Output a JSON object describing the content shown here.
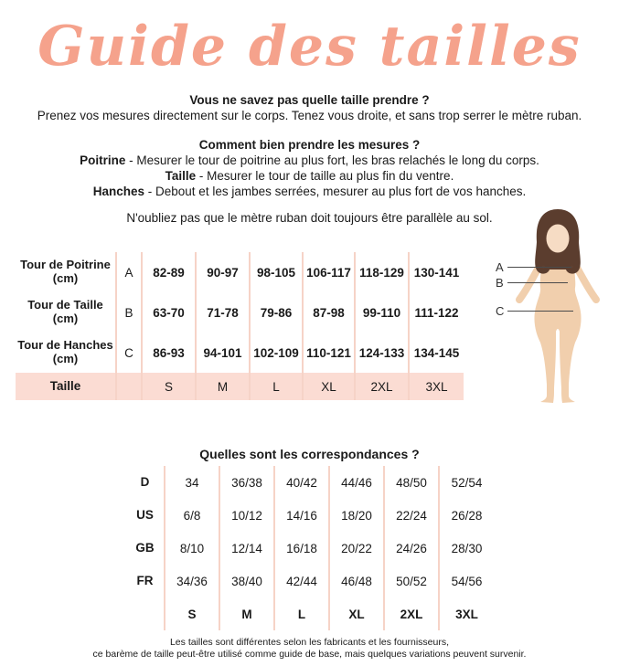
{
  "title": "Guide des tailles",
  "intro": {
    "heading": "Vous ne savez pas quelle taille prendre ?",
    "body": "Prenez vos mesures directement sur le corps. Tenez vous droite, et sans trop serrer le mètre ruban."
  },
  "how_to": {
    "heading": "Comment bien prendre les mesures ?",
    "steps": [
      {
        "label": "Poitrine",
        "text": " - Mesurer le tour de poitrine au plus fort, les bras relachés le long du corps."
      },
      {
        "label": "Taille",
        "text": " - Mesurer le tour de taille au plus fin du ventre."
      },
      {
        "label": "Hanches",
        "text": " - Debout et les jambes serrées, mesurer au plus fort de vos hanches."
      }
    ],
    "note": "N'oubliez pas que le mètre ruban doit toujours être parallèle au sol."
  },
  "measure_table": {
    "rows": [
      {
        "label": "Tour de Poitrine",
        "unit": "(cm)",
        "letter": "A",
        "values": [
          "82-89",
          "90-97",
          "98-105",
          "106-117",
          "118-129",
          "130-141"
        ]
      },
      {
        "label": "Tour de Taille",
        "unit": "(cm)",
        "letter": "B",
        "values": [
          "63-70",
          "71-78",
          "79-86",
          "87-98",
          "99-110",
          "111-122"
        ]
      },
      {
        "label": "Tour de Hanches",
        "unit": "(cm)",
        "letter": "C",
        "values": [
          "86-93",
          "94-101",
          "102-109",
          "110-121",
          "124-133",
          "134-145"
        ]
      }
    ],
    "size_row": {
      "label": "Taille",
      "letter": "",
      "values": [
        "S",
        "M",
        "L",
        "XL",
        "2XL",
        "3XL"
      ]
    }
  },
  "figure": {
    "labels": [
      "A",
      "B",
      "C"
    ]
  },
  "correspondence": {
    "heading": "Quelles sont les correspondances ?",
    "rows": [
      {
        "label": "D",
        "bold": false,
        "values": [
          "34",
          "36/38",
          "40/42",
          "44/46",
          "48/50",
          "52/54"
        ]
      },
      {
        "label": "US",
        "bold": false,
        "values": [
          "6/8",
          "10/12",
          "14/16",
          "18/20",
          "22/24",
          "26/28"
        ]
      },
      {
        "label": "GB",
        "bold": false,
        "values": [
          "8/10",
          "12/14",
          "16/18",
          "20/22",
          "24/26",
          "28/30"
        ]
      },
      {
        "label": "FR",
        "bold": false,
        "values": [
          "34/36",
          "38/40",
          "42/44",
          "46/48",
          "50/52",
          "54/56"
        ]
      },
      {
        "label": "",
        "bold": true,
        "values": [
          "S",
          "M",
          "L",
          "XL",
          "2XL",
          "3XL"
        ]
      }
    ]
  },
  "footer": {
    "line1": "Les tailles sont différentes selon les fabricants et les fournisseurs,",
    "line2": "ce barème de taille peut-être utilisé comme guide de base, mais quelques variations peuvent survenir."
  },
  "colors": {
    "accent": "#f5a28c",
    "size_row_bg": "#fbdcd3",
    "divider": "#f6d3c7",
    "hair": "#5b3d2e",
    "skin": "#f1cfad",
    "face": "#f6dcc4"
  }
}
